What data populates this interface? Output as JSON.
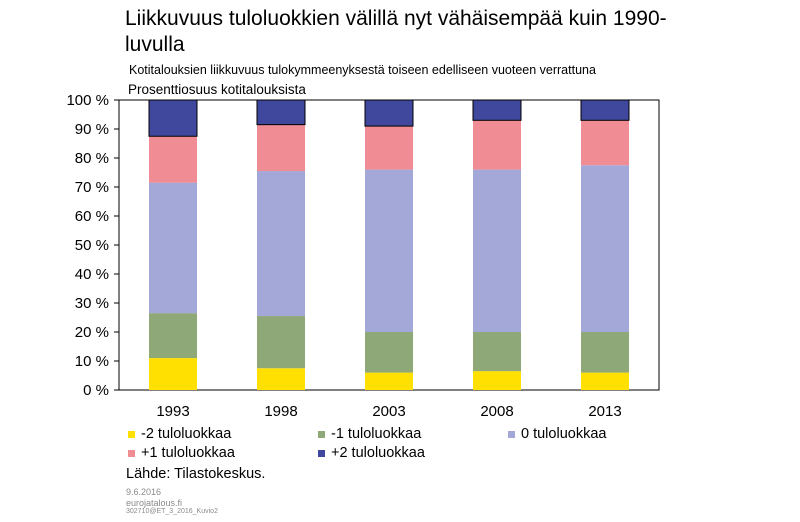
{
  "header": {
    "title": "Liikkuvuus tuloluokkien välillä nyt vähäisempää kuin 1990-luvulla",
    "subtitle": "Kotitalouksien liikkuvuus tulokymmeenyksestä toiseen edelliseen vuoteen verrattuna",
    "unit_note": "Prosenttiosuus kotitalouksista"
  },
  "footer": {
    "source": "Lähde:  Tilastokeskus.",
    "date": "9.6.2016",
    "site": "eurojatalous.fi",
    "code": "302710@ET_3_2016_Kuvio2"
  },
  "chart_data": {
    "type": "bar",
    "stacked": true,
    "categories": [
      "1993",
      "1998",
      "2003",
      "2008",
      "2013"
    ],
    "ylim": [
      0,
      100
    ],
    "yticks": [
      "0 %",
      "10 %",
      "20 %",
      "30 %",
      "40 %",
      "50 %",
      "60 %",
      "70 %",
      "80 %",
      "90 %",
      "100 %"
    ],
    "grid": false,
    "legend_position": "bottom",
    "series": [
      {
        "name": "-2 tuloluokkaa",
        "color": "#FFE000",
        "values": [
          11,
          7.5,
          6,
          6.5,
          6
        ]
      },
      {
        "name": "-1 tuloluokkaa",
        "color": "#8FA878",
        "values": [
          15.5,
          18,
          14,
          13.5,
          14
        ]
      },
      {
        "name": "0 tuloluokkaa",
        "color": "#A4A8D8",
        "values": [
          45,
          50,
          56,
          56,
          57.5
        ]
      },
      {
        "name": "+1 tuloluokkaa",
        "color": "#F08C94",
        "values": [
          16,
          16,
          15,
          17,
          15.5
        ]
      },
      {
        "name": "+2 tuloluokkaa",
        "color": "#3F489C",
        "values": [
          12.5,
          8.5,
          9,
          7,
          7
        ]
      }
    ]
  }
}
